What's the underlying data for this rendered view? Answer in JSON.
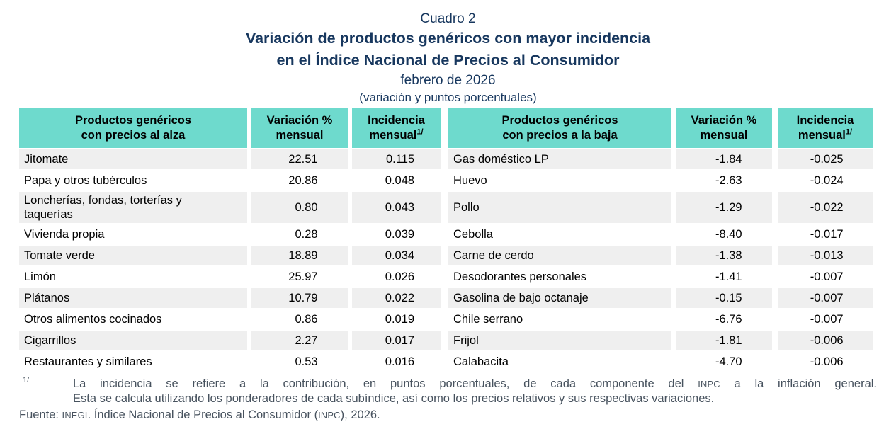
{
  "title": {
    "cuadro": "Cuadro 2",
    "line1": "Variación de productos genéricos con mayor incidencia",
    "line2": "en el Índice Nacional de Precios al Consumidor",
    "period": "febrero de 2026",
    "units": "(variación y puntos porcentuales)"
  },
  "colors": {
    "header_bg": "#6EDACD",
    "stripe_bg": "#EFEFEF",
    "title_text": "#17375E",
    "footnote_text": "#47525E"
  },
  "table": {
    "headers": {
      "up": {
        "product": [
          "Productos genéricos",
          "con precios al alza"
        ],
        "variation": [
          "Variación %",
          "mensual"
        ],
        "incidence": [
          "Incidencia",
          "mensual"
        ],
        "incidence_sup": "1/"
      },
      "down": {
        "product": [
          "Productos genéricos",
          "con precios a la baja"
        ],
        "variation": [
          "Variación %",
          "mensual"
        ],
        "incidence": [
          "Incidencia",
          "mensual"
        ],
        "incidence_sup": "1/"
      }
    },
    "rows": [
      {
        "up": {
          "name": "Jitomate",
          "var": "22.51",
          "inc": "0.115"
        },
        "down": {
          "name": "Gas doméstico LP",
          "var": "-1.84",
          "inc": "-0.025"
        }
      },
      {
        "up": {
          "name": "Papa y otros tubérculos",
          "var": "20.86",
          "inc": "0.048"
        },
        "down": {
          "name": "Huevo",
          "var": "-2.63",
          "inc": "-0.024"
        }
      },
      {
        "up": {
          "name": "Loncherías, fondas, torterías y taquerías",
          "var": "0.80",
          "inc": "0.043"
        },
        "down": {
          "name": "Pollo",
          "var": "-1.29",
          "inc": "-0.022"
        }
      },
      {
        "up": {
          "name": "Vivienda propia",
          "var": "0.28",
          "inc": "0.039"
        },
        "down": {
          "name": "Cebolla",
          "var": "-8.40",
          "inc": "-0.017"
        }
      },
      {
        "up": {
          "name": "Tomate verde",
          "var": "18.89",
          "inc": "0.034"
        },
        "down": {
          "name": "Carne de cerdo",
          "var": "-1.38",
          "inc": "-0.013"
        }
      },
      {
        "up": {
          "name": "Limón",
          "var": "25.97",
          "inc": "0.026"
        },
        "down": {
          "name": "Desodorantes personales",
          "var": "-1.41",
          "inc": "-0.007"
        }
      },
      {
        "up": {
          "name": "Plátanos",
          "var": "10.79",
          "inc": "0.022"
        },
        "down": {
          "name": "Gasolina de bajo octanaje",
          "var": "-0.15",
          "inc": "-0.007"
        }
      },
      {
        "up": {
          "name": "Otros alimentos cocinados",
          "var": "0.86",
          "inc": "0.019"
        },
        "down": {
          "name": "Chile serrano",
          "var": "-6.76",
          "inc": "-0.007"
        }
      },
      {
        "up": {
          "name": "Cigarrillos",
          "var": "2.27",
          "inc": "0.017"
        },
        "down": {
          "name": "Frijol",
          "var": "-1.81",
          "inc": "-0.006"
        }
      },
      {
        "up": {
          "name": "Restaurantes y similares",
          "var": "0.53",
          "inc": "0.016"
        },
        "down": {
          "name": "Calabacita",
          "var": "-4.70",
          "inc": "-0.006"
        }
      }
    ]
  },
  "footnote": {
    "marker": "1/",
    "line1_parts": [
      {
        "t": "La incidencia se refiere a la contribución, en puntos porcentuales, de cada componente del "
      },
      {
        "t": "INPC",
        "sc": true
      },
      {
        "t": " a la inflación general."
      }
    ],
    "line2": "Esta se calcula utilizando los ponderadores de cada subíndice, así como los precios relativos y sus respectivas variaciones.",
    "fuente_parts": [
      {
        "t": "Fuente: "
      },
      {
        "t": "INEGI",
        "sc": true
      },
      {
        "t": ". Índice Nacional de Precios al Consumidor ("
      },
      {
        "t": "INPC",
        "sc": true
      },
      {
        "t": "), 2026."
      }
    ]
  }
}
